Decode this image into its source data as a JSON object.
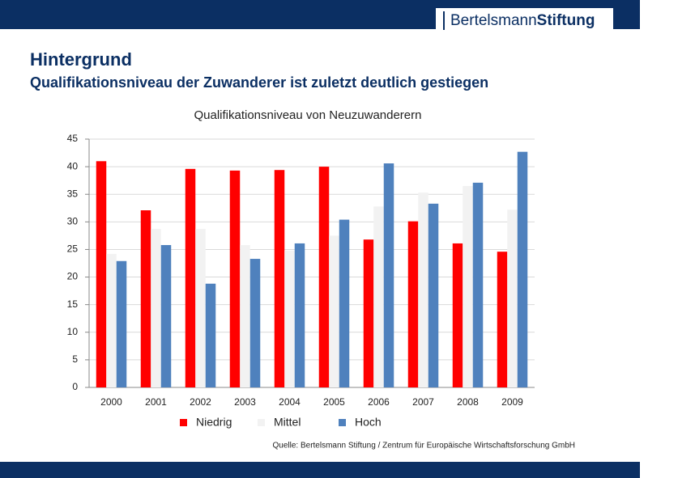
{
  "header": {
    "logo": [
      "Bertelsmann",
      "Stiftung"
    ],
    "title": "Hintergrund",
    "subtitle": "Qualifikationsniveau der Zuwanderer ist zuletzt deutlich gestiegen"
  },
  "chart_data": {
    "type": "bar",
    "title": "Qualifikationsniveau von Neuzuwanderern",
    "categories": [
      "2000",
      "2001",
      "2002",
      "2003",
      "2004",
      "2005",
      "2006",
      "2007",
      "2008",
      "2009"
    ],
    "series": [
      {
        "name": "Niedrig",
        "color": "#ff0000",
        "values": [
          41,
          32.1,
          39.6,
          39.3,
          39.4,
          40,
          26.8,
          30.1,
          26.1,
          24.6
        ]
      },
      {
        "name": "Mittel",
        "color": "#f2f2f2",
        "values": [
          24.2,
          28.7,
          28.7,
          25.8,
          24.8,
          27.5,
          32.8,
          35.3,
          36.5,
          32.2
        ]
      },
      {
        "name": "Hoch",
        "color": "#4f81bd",
        "values": [
          22.9,
          25.8,
          18.8,
          23.3,
          26.1,
          30.4,
          40.6,
          33.3,
          37.1,
          42.7
        ]
      }
    ],
    "ylim": [
      0,
      45
    ],
    "yticks": [
      0,
      5,
      10,
      15,
      20,
      25,
      30,
      35,
      40,
      45
    ],
    "grid": true,
    "legend": "bottom"
  },
  "source": "Quelle: Bertelsmann Stiftung / Zentrum für Europäische Wirtschaftsforschung GmbH"
}
